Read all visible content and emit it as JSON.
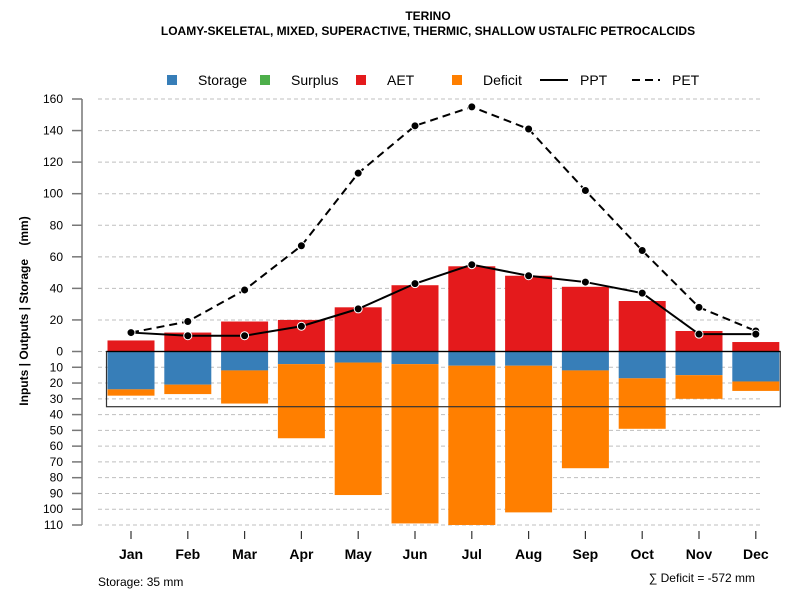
{
  "chart_data": {
    "type": "bar",
    "title": "TERINO",
    "subtitle": "LOAMY-SKELETAL, MIXED, SUPERACTIVE, THERMIC, SHALLOW USTALFIC PETROCALCIDS",
    "ylabel": "Inputs | Outputs | Storage    (mm)",
    "xlabel": "",
    "categories": [
      "Jan",
      "Feb",
      "Mar",
      "Apr",
      "May",
      "Jun",
      "Jul",
      "Aug",
      "Sep",
      "Oct",
      "Nov",
      "Dec"
    ],
    "upper_axis": {
      "ylim": [
        0,
        160
      ],
      "ticks": [
        "0",
        "20",
        "40",
        "60",
        "80",
        "100",
        "120",
        "140",
        "160"
      ]
    },
    "lower_axis": {
      "ylim": [
        0,
        110
      ],
      "ticks": [
        "10",
        "20",
        "30",
        "40",
        "50",
        "60",
        "70",
        "80",
        "90",
        "100",
        "110"
      ]
    },
    "grid": true,
    "legend": {
      "position": "top",
      "items": [
        {
          "label": "Storage",
          "type": "box",
          "color": "#377EB8"
        },
        {
          "label": "Surplus",
          "type": "box",
          "color": "#4DAF4A"
        },
        {
          "label": "AET",
          "type": "box",
          "color": "#E41A1C"
        },
        {
          "label": "Deficit",
          "type": "box",
          "color": "#FF7F00"
        },
        {
          "label": "PPT",
          "type": "solid-line",
          "color": "#000000"
        },
        {
          "label": "PET",
          "type": "dashed-line",
          "color": "#000000"
        }
      ]
    },
    "series": [
      {
        "name": "AET",
        "direction": "up",
        "color": "#E41A1C",
        "values": [
          7,
          12,
          19,
          20,
          28,
          42,
          54,
          48,
          41,
          32,
          13,
          6
        ]
      },
      {
        "name": "Surplus",
        "direction": "up",
        "color": "#4DAF4A",
        "values": [
          0,
          0,
          0,
          0,
          0,
          0,
          0,
          0,
          0,
          0,
          0,
          0
        ]
      },
      {
        "name": "Storage",
        "direction": "down",
        "color": "#377EB8",
        "values": [
          24,
          21,
          12,
          8,
          7,
          8,
          9,
          9,
          12,
          17,
          15,
          19
        ]
      },
      {
        "name": "Deficit",
        "direction": "down",
        "color": "#FF7F00",
        "values": [
          4,
          6,
          21,
          47,
          84,
          101,
          101,
          93,
          62,
          32,
          15,
          6
        ]
      },
      {
        "name": "PPT",
        "type": "line",
        "style": "solid",
        "color": "#000000",
        "values": [
          12,
          10,
          10,
          16,
          27,
          43,
          55,
          48,
          44,
          37,
          11,
          11
        ]
      },
      {
        "name": "PET",
        "type": "line",
        "style": "dashed",
        "color": "#000000",
        "values": [
          12,
          19,
          39,
          67,
          113,
          143,
          155,
          141,
          102,
          64,
          28,
          13
        ]
      }
    ],
    "storage_capacity": 35,
    "annotations": {
      "storage": "Storage: 35 mm",
      "deficit_sum": "∑ Deficit = -572 mm"
    }
  }
}
